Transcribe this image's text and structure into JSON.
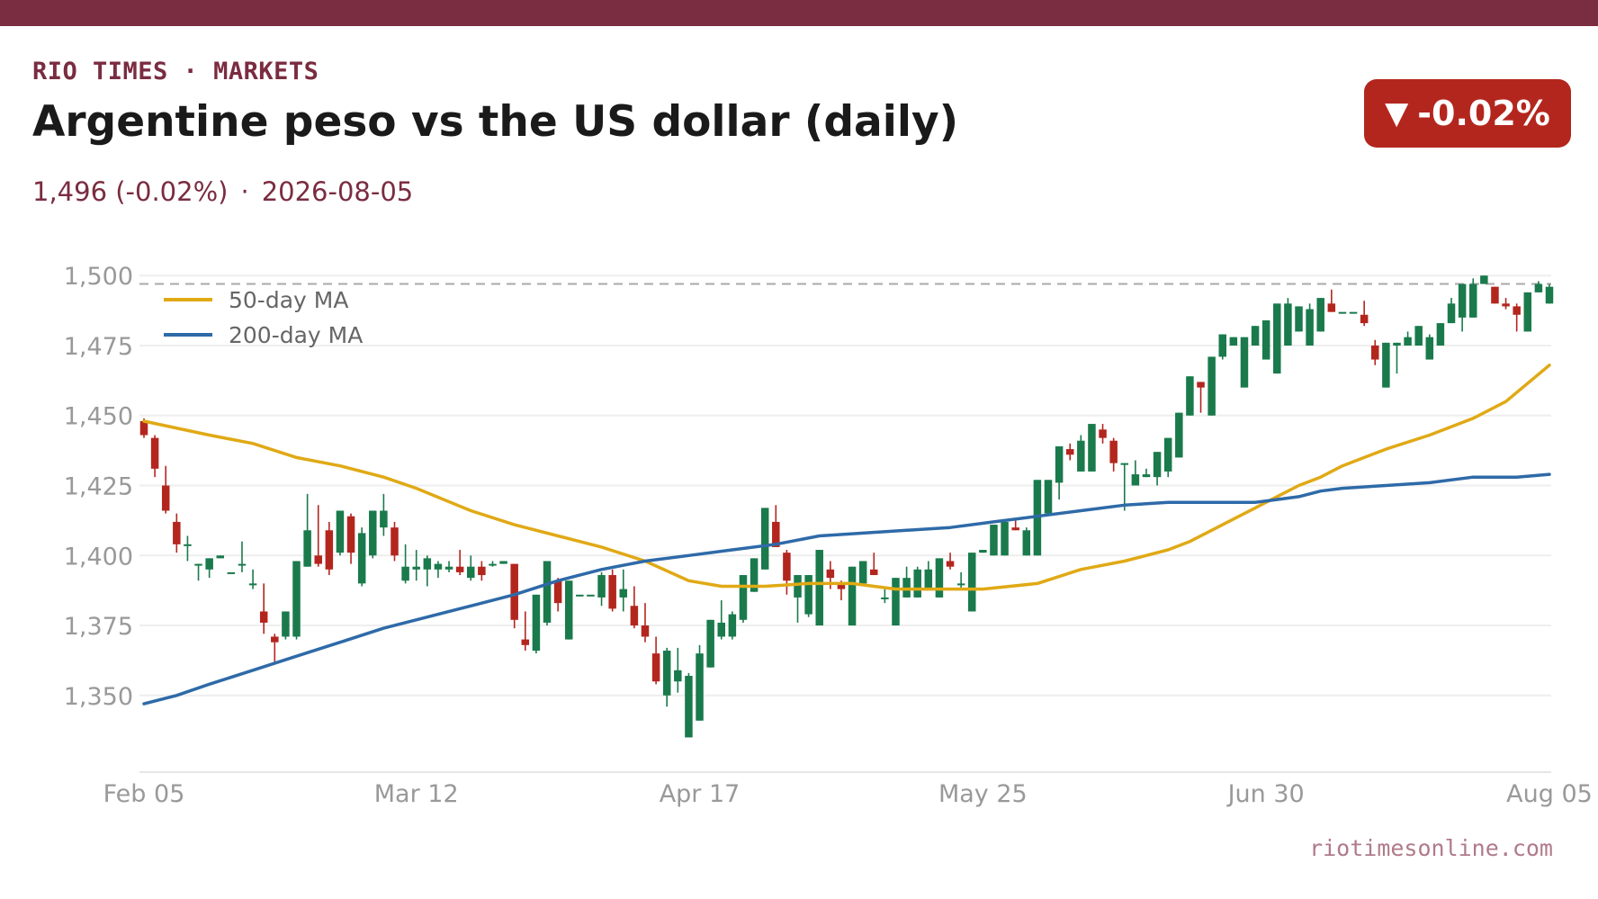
{
  "header": {
    "kicker": "RIO TIMES · MARKETS",
    "title": "Argentine peso vs the US dollar (daily)",
    "last_value": "1,496 (-0.02%)",
    "date": "2026-08-05",
    "separator": "·",
    "change_badge": "-0.02%",
    "badge_arrow": "▼"
  },
  "source": "riotimesonline.com",
  "colors": {
    "brand": "#7a2c40",
    "up": "#1a7a4c",
    "down": "#b3261e",
    "ma50": "#e0a915",
    "ma200": "#2e6aa8",
    "reference": "#aaaaaa",
    "grid": "#eeeeee",
    "tick_text": "#999999"
  },
  "chart_data": {
    "type": "candlestick",
    "title": "",
    "xlabel": "",
    "ylabel": "",
    "ylim": [
      1330,
      1502
    ],
    "yticks": [
      1350,
      1375,
      1400,
      1425,
      1450,
      1475,
      1500
    ],
    "ytick_labels": [
      "1,350",
      "1,375",
      "1,400",
      "1,425",
      "1,450",
      "1,475",
      "1,500"
    ],
    "xtick_labels": [
      "Feb 05",
      "Mar 12",
      "Apr 17",
      "May 25",
      "Jun 30",
      "Aug 05"
    ],
    "xtick_index": [
      0,
      25,
      51,
      77,
      103,
      129
    ],
    "reference_line": 1497,
    "legend": {
      "placement": "top-left",
      "entries": [
        {
          "name": "50-day MA",
          "series": "ma50"
        },
        {
          "name": "200-day MA",
          "series": "ma200"
        }
      ]
    },
    "candles": [
      {
        "o": 1448,
        "h": 1449,
        "l": 1442,
        "c": 1443
      },
      {
        "o": 1442,
        "h": 1443,
        "l": 1428,
        "c": 1431
      },
      {
        "o": 1425,
        "h": 1432,
        "l": 1415,
        "c": 1416
      },
      {
        "o": 1412,
        "h": 1415,
        "l": 1401,
        "c": 1404
      },
      {
        "o": 1404,
        "h": 1407,
        "l": 1398,
        "c": 1404
      },
      {
        "o": 1397,
        "h": 1397,
        "l": 1391,
        "c": 1397
      },
      {
        "o": 1395,
        "h": 1399,
        "l": 1392,
        "c": 1399
      },
      {
        "o": 1399,
        "h": 1400,
        "l": 1399,
        "c": 1400
      },
      {
        "o": 1394,
        "h": 1394,
        "l": 1394,
        "c": 1394
      },
      {
        "o": 1397,
        "h": 1405,
        "l": 1394,
        "c": 1397
      },
      {
        "o": 1390,
        "h": 1395,
        "l": 1388,
        "c": 1390
      },
      {
        "o": 1380,
        "h": 1390,
        "l": 1372,
        "c": 1376
      },
      {
        "o": 1371,
        "h": 1372,
        "l": 1362,
        "c": 1369
      },
      {
        "o": 1371,
        "h": 1380,
        "l": 1370,
        "c": 1380
      },
      {
        "o": 1371,
        "h": 1398,
        "l": 1370,
        "c": 1398
      },
      {
        "o": 1396,
        "h": 1422,
        "l": 1396,
        "c": 1409
      },
      {
        "o": 1400,
        "h": 1418,
        "l": 1396,
        "c": 1397
      },
      {
        "o": 1409,
        "h": 1412,
        "l": 1393,
        "c": 1395
      },
      {
        "o": 1401,
        "h": 1416,
        "l": 1400,
        "c": 1416
      },
      {
        "o": 1414,
        "h": 1415,
        "l": 1397,
        "c": 1401
      },
      {
        "o": 1390,
        "h": 1410,
        "l": 1389,
        "c": 1408
      },
      {
        "o": 1400,
        "h": 1416,
        "l": 1399,
        "c": 1416
      },
      {
        "o": 1410,
        "h": 1422,
        "l": 1407,
        "c": 1416
      },
      {
        "o": 1410,
        "h": 1412,
        "l": 1398,
        "c": 1400
      },
      {
        "o": 1391,
        "h": 1404,
        "l": 1390,
        "c": 1396
      },
      {
        "o": 1395,
        "h": 1402,
        "l": 1391,
        "c": 1396
      },
      {
        "o": 1395,
        "h": 1400,
        "l": 1389,
        "c": 1399
      },
      {
        "o": 1395,
        "h": 1398,
        "l": 1392,
        "c": 1397
      },
      {
        "o": 1395,
        "h": 1398,
        "l": 1394,
        "c": 1396
      },
      {
        "o": 1396,
        "h": 1402,
        "l": 1393,
        "c": 1394
      },
      {
        "o": 1392,
        "h": 1400,
        "l": 1391,
        "c": 1396
      },
      {
        "o": 1396,
        "h": 1398,
        "l": 1391,
        "c": 1393
      },
      {
        "o": 1397,
        "h": 1398,
        "l": 1396,
        "c": 1397
      },
      {
        "o": 1397,
        "h": 1398,
        "l": 1397,
        "c": 1398
      },
      {
        "o": 1397,
        "h": 1397,
        "l": 1374,
        "c": 1377
      },
      {
        "o": 1370,
        "h": 1380,
        "l": 1366,
        "c": 1368
      },
      {
        "o": 1366,
        "h": 1386,
        "l": 1365,
        "c": 1386
      },
      {
        "o": 1376,
        "h": 1398,
        "l": 1375,
        "c": 1398
      },
      {
        "o": 1391,
        "h": 1392,
        "l": 1380,
        "c": 1383
      },
      {
        "o": 1370,
        "h": 1391,
        "l": 1370,
        "c": 1391
      },
      {
        "o": 1386,
        "h": 1386,
        "l": 1386,
        "c": 1386
      },
      {
        "o": 1386,
        "h": 1386,
        "l": 1386,
        "c": 1386
      },
      {
        "o": 1385,
        "h": 1394,
        "l": 1382,
        "c": 1393
      },
      {
        "o": 1393,
        "h": 1395,
        "l": 1380,
        "c": 1381
      },
      {
        "o": 1385,
        "h": 1395,
        "l": 1380,
        "c": 1388
      },
      {
        "o": 1382,
        "h": 1389,
        "l": 1374,
        "c": 1375
      },
      {
        "o": 1375,
        "h": 1383,
        "l": 1369,
        "c": 1371
      },
      {
        "o": 1365,
        "h": 1371,
        "l": 1354,
        "c": 1355
      },
      {
        "o": 1350,
        "h": 1367,
        "l": 1346,
        "c": 1366
      },
      {
        "o": 1355,
        "h": 1367,
        "l": 1351,
        "c": 1359
      },
      {
        "o": 1335,
        "h": 1358,
        "l": 1335,
        "c": 1357
      },
      {
        "o": 1341,
        "h": 1368,
        "l": 1341,
        "c": 1365
      },
      {
        "o": 1360,
        "h": 1377,
        "l": 1360,
        "c": 1377
      },
      {
        "o": 1371,
        "h": 1384,
        "l": 1370,
        "c": 1376
      },
      {
        "o": 1371,
        "h": 1380,
        "l": 1370,
        "c": 1379
      },
      {
        "o": 1377,
        "h": 1393,
        "l": 1376,
        "c": 1393
      },
      {
        "o": 1387,
        "h": 1399,
        "l": 1387,
        "c": 1399
      },
      {
        "o": 1395,
        "h": 1417,
        "l": 1395,
        "c": 1417
      },
      {
        "o": 1412,
        "h": 1418,
        "l": 1403,
        "c": 1403
      },
      {
        "o": 1401,
        "h": 1402,
        "l": 1386,
        "c": 1391
      },
      {
        "o": 1385,
        "h": 1393,
        "l": 1376,
        "c": 1393
      },
      {
        "o": 1379,
        "h": 1393,
        "l": 1378,
        "c": 1393
      },
      {
        "o": 1375,
        "h": 1402,
        "l": 1375,
        "c": 1402
      },
      {
        "o": 1395,
        "h": 1398,
        "l": 1388,
        "c": 1392
      },
      {
        "o": 1390,
        "h": 1391,
        "l": 1384,
        "c": 1388
      },
      {
        "o": 1375,
        "h": 1396,
        "l": 1375,
        "c": 1396
      },
      {
        "o": 1390,
        "h": 1398,
        "l": 1390,
        "c": 1398
      },
      {
        "o": 1395,
        "h": 1401,
        "l": 1393,
        "c": 1393
      },
      {
        "o": 1385,
        "h": 1388,
        "l": 1383,
        "c": 1385
      },
      {
        "o": 1375,
        "h": 1392,
        "l": 1375,
        "c": 1392
      },
      {
        "o": 1385,
        "h": 1396,
        "l": 1385,
        "c": 1392
      },
      {
        "o": 1385,
        "h": 1396,
        "l": 1385,
        "c": 1395
      },
      {
        "o": 1388,
        "h": 1398,
        "l": 1388,
        "c": 1395
      },
      {
        "o": 1385,
        "h": 1399,
        "l": 1385,
        "c": 1399
      },
      {
        "o": 1398,
        "h": 1401,
        "l": 1395,
        "c": 1396
      },
      {
        "o": 1390,
        "h": 1394,
        "l": 1388,
        "c": 1390
      },
      {
        "o": 1380,
        "h": 1401,
        "l": 1380,
        "c": 1401
      },
      {
        "o": 1401,
        "h": 1402,
        "l": 1401,
        "c": 1402
      },
      {
        "o": 1400,
        "h": 1411,
        "l": 1400,
        "c": 1411
      },
      {
        "o": 1400,
        "h": 1412,
        "l": 1400,
        "c": 1412
      },
      {
        "o": 1410,
        "h": 1413,
        "l": 1409,
        "c": 1409
      },
      {
        "o": 1400,
        "h": 1410,
        "l": 1400,
        "c": 1409
      },
      {
        "o": 1400,
        "h": 1427,
        "l": 1400,
        "c": 1427
      },
      {
        "o": 1415,
        "h": 1427,
        "l": 1415,
        "c": 1427
      },
      {
        "o": 1426,
        "h": 1439,
        "l": 1420,
        "c": 1439
      },
      {
        "o": 1438,
        "h": 1440,
        "l": 1434,
        "c": 1436
      },
      {
        "o": 1430,
        "h": 1443,
        "l": 1430,
        "c": 1441
      },
      {
        "o": 1430,
        "h": 1447,
        "l": 1430,
        "c": 1447
      },
      {
        "o": 1445,
        "h": 1447,
        "l": 1440,
        "c": 1442
      },
      {
        "o": 1441,
        "h": 1442,
        "l": 1430,
        "c": 1433
      },
      {
        "o": 1433,
        "h": 1433,
        "l": 1416,
        "c": 1433
      },
      {
        "o": 1425,
        "h": 1434,
        "l": 1425,
        "c": 1429
      },
      {
        "o": 1428,
        "h": 1431,
        "l": 1428,
        "c": 1429
      },
      {
        "o": 1428,
        "h": 1437,
        "l": 1425,
        "c": 1437
      },
      {
        "o": 1430,
        "h": 1442,
        "l": 1428,
        "c": 1442
      },
      {
        "o": 1435,
        "h": 1451,
        "l": 1435,
        "c": 1451
      },
      {
        "o": 1450,
        "h": 1464,
        "l": 1450,
        "c": 1464
      },
      {
        "o": 1462,
        "h": 1462,
        "l": 1451,
        "c": 1460
      },
      {
        "o": 1450,
        "h": 1471,
        "l": 1450,
        "c": 1471
      },
      {
        "o": 1471,
        "h": 1479,
        "l": 1470,
        "c": 1479
      },
      {
        "o": 1475,
        "h": 1478,
        "l": 1475,
        "c": 1478
      },
      {
        "o": 1460,
        "h": 1478,
        "l": 1460,
        "c": 1478
      },
      {
        "o": 1475,
        "h": 1482,
        "l": 1475,
        "c": 1482
      },
      {
        "o": 1470,
        "h": 1484,
        "l": 1470,
        "c": 1484
      },
      {
        "o": 1465,
        "h": 1490,
        "l": 1465,
        "c": 1490
      },
      {
        "o": 1475,
        "h": 1492,
        "l": 1475,
        "c": 1490
      },
      {
        "o": 1480,
        "h": 1489,
        "l": 1480,
        "c": 1489
      },
      {
        "o": 1475,
        "h": 1490,
        "l": 1475,
        "c": 1488
      },
      {
        "o": 1480,
        "h": 1492,
        "l": 1480,
        "c": 1492
      },
      {
        "o": 1490,
        "h": 1495,
        "l": 1487,
        "c": 1487
      },
      {
        "o": 1487,
        "h": 1487,
        "l": 1487,
        "c": 1487
      },
      {
        "o": 1487,
        "h": 1487,
        "l": 1487,
        "c": 1487
      },
      {
        "o": 1486,
        "h": 1491,
        "l": 1482,
        "c": 1483
      },
      {
        "o": 1475,
        "h": 1477,
        "l": 1468,
        "c": 1470
      },
      {
        "o": 1460,
        "h": 1476,
        "l": 1460,
        "c": 1476
      },
      {
        "o": 1475,
        "h": 1476,
        "l": 1465,
        "c": 1476
      },
      {
        "o": 1475,
        "h": 1480,
        "l": 1475,
        "c": 1478
      },
      {
        "o": 1475,
        "h": 1482,
        "l": 1475,
        "c": 1482
      },
      {
        "o": 1470,
        "h": 1479,
        "l": 1470,
        "c": 1478
      },
      {
        "o": 1475,
        "h": 1483,
        "l": 1475,
        "c": 1483
      },
      {
        "o": 1483,
        "h": 1492,
        "l": 1483,
        "c": 1490
      },
      {
        "o": 1485,
        "h": 1497,
        "l": 1480,
        "c": 1497
      },
      {
        "o": 1485,
        "h": 1499,
        "l": 1485,
        "c": 1497
      },
      {
        "o": 1497,
        "h": 1500,
        "l": 1497,
        "c": 1500
      },
      {
        "o": 1496,
        "h": 1496,
        "l": 1490,
        "c": 1490
      },
      {
        "o": 1490,
        "h": 1492,
        "l": 1488,
        "c": 1489
      },
      {
        "o": 1489,
        "h": 1490,
        "l": 1480,
        "c": 1486
      },
      {
        "o": 1480,
        "h": 1494,
        "l": 1480,
        "c": 1494
      },
      {
        "o": 1494,
        "h": 1498,
        "l": 1494,
        "c": 1497
      },
      {
        "o": 1490,
        "h": 1497,
        "l": 1490,
        "c": 1496
      }
    ],
    "series": [
      {
        "name": "50-day MA",
        "key": "ma50",
        "points": [
          [
            0,
            1448
          ],
          [
            6,
            1443
          ],
          [
            10,
            1440
          ],
          [
            14,
            1435
          ],
          [
            18,
            1432
          ],
          [
            22,
            1428
          ],
          [
            25,
            1424
          ],
          [
            30,
            1416
          ],
          [
            34,
            1411
          ],
          [
            38,
            1407
          ],
          [
            42,
            1403
          ],
          [
            46,
            1398
          ],
          [
            50,
            1391
          ],
          [
            53,
            1389
          ],
          [
            57,
            1389
          ],
          [
            61,
            1390
          ],
          [
            65,
            1390
          ],
          [
            69,
            1388
          ],
          [
            73,
            1388
          ],
          [
            77,
            1388
          ],
          [
            82,
            1390
          ],
          [
            86,
            1395
          ],
          [
            90,
            1398
          ],
          [
            94,
            1402
          ],
          [
            96,
            1405
          ],
          [
            98,
            1409
          ],
          [
            100,
            1413
          ],
          [
            102,
            1417
          ],
          [
            104,
            1421
          ],
          [
            106,
            1425
          ],
          [
            108,
            1428
          ],
          [
            110,
            1432
          ],
          [
            112,
            1435
          ],
          [
            114,
            1438
          ],
          [
            118,
            1443
          ],
          [
            122,
            1449
          ],
          [
            125,
            1455
          ],
          [
            129,
            1468
          ]
        ]
      },
      {
        "name": "200-day MA",
        "key": "ma200",
        "points": [
          [
            0,
            1347
          ],
          [
            3,
            1350
          ],
          [
            6,
            1354
          ],
          [
            10,
            1359
          ],
          [
            14,
            1364
          ],
          [
            18,
            1369
          ],
          [
            22,
            1374
          ],
          [
            26,
            1378
          ],
          [
            30,
            1382
          ],
          [
            34,
            1386
          ],
          [
            38,
            1391
          ],
          [
            42,
            1395
          ],
          [
            46,
            1398
          ],
          [
            50,
            1400
          ],
          [
            54,
            1402
          ],
          [
            58,
            1404
          ],
          [
            62,
            1407
          ],
          [
            66,
            1408
          ],
          [
            70,
            1409
          ],
          [
            74,
            1410
          ],
          [
            78,
            1412
          ],
          [
            82,
            1414
          ],
          [
            86,
            1416
          ],
          [
            90,
            1418
          ],
          [
            94,
            1419
          ],
          [
            98,
            1419
          ],
          [
            102,
            1419
          ],
          [
            104,
            1420
          ],
          [
            106,
            1421
          ],
          [
            108,
            1423
          ],
          [
            110,
            1424
          ],
          [
            114,
            1425
          ],
          [
            118,
            1426
          ],
          [
            122,
            1428
          ],
          [
            126,
            1428
          ],
          [
            129,
            1429
          ]
        ]
      }
    ]
  }
}
